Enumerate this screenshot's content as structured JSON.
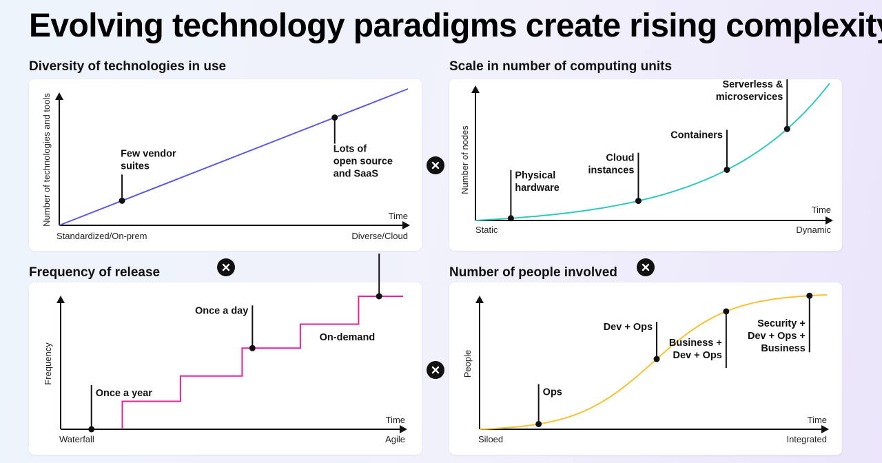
{
  "title": "Evolving technology paradigms create rising complexity",
  "operator_icon": "times-icon",
  "chart_data": [
    {
      "id": "diversity",
      "type": "line",
      "title": "Diversity of technologies in use",
      "xlabel": "Time",
      "ylabel": "Number of technologies and tools",
      "x_start_label": "Standardized/On-prem",
      "x_end_label": "Diverse/Cloud",
      "color": "#5a5ae6",
      "x": [
        0,
        1
      ],
      "y": [
        0,
        1
      ],
      "annotations": [
        {
          "text": "Few vendor suites",
          "lines": [
            "Few vendor",
            "suites"
          ],
          "x": 0.18,
          "y": 0.18
        },
        {
          "text": "Lots of open source and SaaS",
          "lines": [
            "Lots of",
            "open source",
            "and SaaS"
          ],
          "x": 0.79,
          "y": 0.79
        }
      ]
    },
    {
      "id": "scale",
      "type": "line",
      "title": "Scale in number of computing units",
      "xlabel": "Time",
      "ylabel": "Number of nodes",
      "x_start_label": "Static",
      "x_end_label": "Dynamic",
      "color": "#2ec9bc",
      "curve": "exponential",
      "annotations": [
        {
          "text": "Physical hardware",
          "lines": [
            "Physical",
            "hardware"
          ],
          "x": 0.1
        },
        {
          "text": "Cloud instances",
          "lines": [
            "Cloud",
            "instances"
          ],
          "x": 0.46
        },
        {
          "text": "Containers",
          "lines": [
            "Containers"
          ],
          "x": 0.71
        },
        {
          "text": "Serverless & microservices",
          "lines": [
            "Serverless &",
            "microservices"
          ],
          "x": 0.88
        }
      ]
    },
    {
      "id": "frequency",
      "type": "line",
      "title": "Frequency of release",
      "xlabel": "Time",
      "ylabel": "Frequency",
      "x_start_label": "Waterfall",
      "x_end_label": "Agile",
      "color": "#e8239a",
      "steps": [
        {
          "x0": 0.18,
          "x1": 0.35,
          "y": 0.21
        },
        {
          "x0": 0.35,
          "x1": 0.53,
          "y": 0.4
        },
        {
          "x0": 0.53,
          "x1": 0.7,
          "y": 0.61
        },
        {
          "x0": 0.7,
          "x1": 0.87,
          "y": 0.79
        },
        {
          "x0": 0.87,
          "x1": 1.0,
          "y": 1.0
        }
      ],
      "annotations": [
        {
          "text": "Once a year",
          "lines": [
            "Once a year"
          ],
          "x": 0.09,
          "y": 0
        },
        {
          "text": "Once a day",
          "lines": [
            "Once a day"
          ],
          "x": 0.56,
          "y": 0.61
        },
        {
          "text": "On-demand",
          "lines": [
            "On-demand"
          ],
          "x": 0.93,
          "y": 1.0
        }
      ]
    },
    {
      "id": "people",
      "type": "line",
      "title": "Number of people involved",
      "xlabel": "Time",
      "ylabel": "People",
      "x_start_label": "Siloed",
      "x_end_label": "Integrated",
      "color": "#f6c232",
      "curve": "sigmoid",
      "annotations": [
        {
          "text": "Ops",
          "lines": [
            "Ops"
          ],
          "x": 0.17
        },
        {
          "text": "Dev + Ops",
          "lines": [
            "Dev + Ops"
          ],
          "x": 0.51
        },
        {
          "text": "Business + Dev + Ops",
          "lines": [
            "Business +",
            "Dev + Ops"
          ],
          "x": 0.71
        },
        {
          "text": "Security + Dev + Ops + Business",
          "lines": [
            "Security +",
            "Dev + Ops +",
            "Business"
          ],
          "x": 0.95
        }
      ]
    }
  ]
}
